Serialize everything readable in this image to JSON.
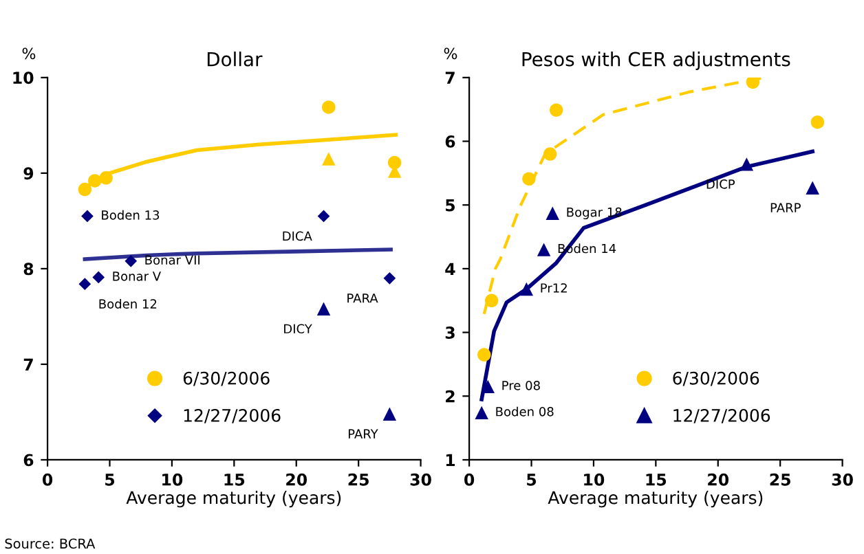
{
  "chart_data": [
    {
      "type": "scatter",
      "title": "Dollar",
      "xlabel": "Average maturity (years)",
      "ylabel": "%",
      "xlim": [
        0,
        30
      ],
      "xticks": [
        0,
        5,
        10,
        15,
        20,
        25,
        30
      ],
      "ylim": [
        6,
        10
      ],
      "yticks": [
        6,
        7,
        8,
        9,
        10
      ],
      "grid": false,
      "legend": "bottom left",
      "series": [
        {
          "name": "6/30/2006",
          "color": "#ffcc00",
          "marker": "circle",
          "x": [
            3.0,
            3.8,
            4.7,
            22.6,
            27.9
          ],
          "values": [
            8.83,
            8.92,
            8.95,
            9.69,
            9.11
          ]
        },
        {
          "color": "#ffcc00",
          "marker": "triangle",
          "x": [
            22.6,
            27.9
          ],
          "values": [
            9.15,
            9.02
          ]
        },
        {
          "name": "12/27/2006",
          "color": "#000080",
          "marker": "diamond",
          "x": [
            3.2,
            6.7,
            22.2,
            3.0,
            4.1,
            27.5
          ],
          "values": [
            8.55,
            8.08,
            8.55,
            7.84,
            7.91,
            7.9
          ]
        },
        {
          "color": "#000080",
          "marker": "triangle",
          "x": [
            22.2,
            27.5
          ],
          "values": [
            7.58,
            6.48
          ]
        },
        {
          "type": "line",
          "color": "#ffcc00",
          "line_style": "solid",
          "x": [
            3.0,
            5,
            8,
            12,
            17,
            22.6,
            28
          ],
          "values": [
            8.85,
            9.0,
            9.12,
            9.24,
            9.3,
            9.35,
            9.4
          ]
        },
        {
          "type": "line",
          "color": "#2e3192",
          "line_style": "solid",
          "x": [
            3.0,
            8,
            12,
            20,
            27.6
          ],
          "values": [
            8.1,
            8.14,
            8.16,
            8.18,
            8.2
          ]
        }
      ],
      "annotations": [
        {
          "text": "Boden 13",
          "x": 3.2,
          "y": 8.55
        },
        {
          "text": "Bonar VII",
          "x": 6.7,
          "y": 8.08
        },
        {
          "text": "DICA",
          "x": 22.2,
          "y": 8.55
        },
        {
          "text": "Bonar V",
          "x": 4.1,
          "y": 7.91
        },
        {
          "text": "Boden 12",
          "x": 3.0,
          "y": 7.84
        },
        {
          "text": "PARA",
          "x": 27.5,
          "y": 7.9
        },
        {
          "text": "DICY",
          "x": 22.2,
          "y": 7.58
        },
        {
          "text": "PARY",
          "x": 27.5,
          "y": 6.48
        },
        "Source: BCRA"
      ]
    },
    {
      "type": "scatter",
      "title": "Pesos with CER adjustments",
      "xlabel": "Average maturity (years)",
      "ylabel": "%",
      "xlim": [
        0,
        30
      ],
      "xticks": [
        0,
        5,
        10,
        15,
        20,
        25,
        30
      ],
      "ylim": [
        1,
        7
      ],
      "yticks": [
        1,
        2,
        3,
        4,
        5,
        6,
        7
      ],
      "grid": false,
      "legend": "bottom right",
      "series": [
        {
          "name": "6/30/2006",
          "color": "#ffcc00",
          "marker": "circle",
          "x": [
            1.2,
            1.8,
            4.8,
            6.5,
            7.0,
            22.8,
            28.0
          ],
          "values": [
            2.65,
            3.5,
            5.41,
            5.8,
            6.49,
            6.93,
            6.3
          ]
        },
        {
          "name": "12/27/2006",
          "color": "#000080",
          "marker": "triangle",
          "x": [
            1.0,
            1.5,
            4.6,
            6.0,
            6.7,
            22.3,
            27.6
          ],
          "values": [
            1.74,
            2.15,
            3.68,
            4.3,
            4.87,
            5.64,
            5.27
          ]
        },
        {
          "type": "line",
          "color": "#ffcc00",
          "line_style": "dashed",
          "x": [
            1.2,
            2.1,
            2.5,
            4.1,
            6.1,
            10.8,
            17.6,
            23.7
          ],
          "values": [
            3.29,
            4.0,
            4.15,
            4.98,
            5.8,
            6.42,
            6.77,
            7.0
          ]
        },
        {
          "type": "line",
          "color": "#000080",
          "line_style": "solid",
          "x": [
            1.0,
            2.0,
            3.0,
            4.6,
            7.0,
            9.2,
            14.2,
            22.3,
            27.6
          ],
          "values": [
            1.95,
            3.02,
            3.47,
            3.68,
            4.09,
            4.64,
            5.0,
            5.6,
            5.84
          ]
        }
      ],
      "annotations": [
        {
          "text": "Boden 08",
          "x": 1.0,
          "y": 1.74
        },
        {
          "text": "Pre 08",
          "x": 1.5,
          "y": 2.15
        },
        {
          "text": "Pr12",
          "x": 4.6,
          "y": 3.68
        },
        {
          "text": "Boden 14",
          "x": 6.0,
          "y": 4.3
        },
        {
          "text": "Bogar 18",
          "x": 6.7,
          "y": 4.87
        },
        {
          "text": "DICP",
          "x": 22.3,
          "y": 5.64
        },
        {
          "text": "PARP",
          "x": 27.6,
          "y": 5.27
        }
      ]
    }
  ]
}
